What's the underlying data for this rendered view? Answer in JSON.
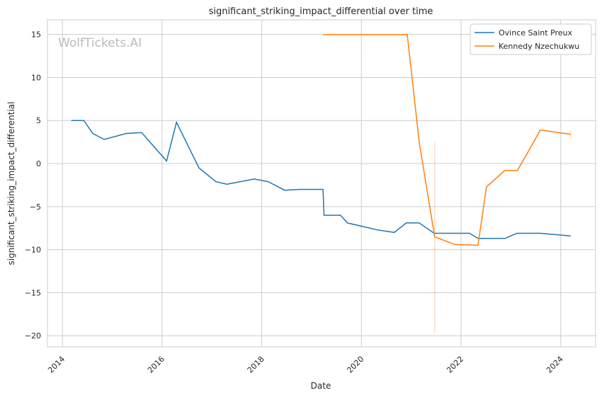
{
  "chart_data": {
    "type": "line",
    "title": "significant_striking_impact_differential over time",
    "xlabel": "Date",
    "ylabel": "significant_striking_impact_differential",
    "watermark": "WolfTickets.AI",
    "xlim": [
      2013.7,
      2024.7
    ],
    "ylim": [
      -21.3,
      16.7
    ],
    "xticks": [
      2014,
      2016,
      2018,
      2020,
      2022,
      2024
    ],
    "yticks": [
      -20,
      -15,
      -10,
      -5,
      0,
      5,
      10,
      15
    ],
    "grid": true,
    "legend_position": "top-right",
    "series": [
      {
        "name": "Ovince Saint Preux",
        "color": "#1f77b4",
        "x": [
          2014.18,
          2014.43,
          2014.61,
          2014.84,
          2015.28,
          2015.59,
          2016.09,
          2016.29,
          2016.74,
          2017.08,
          2017.3,
          2017.85,
          2018.13,
          2018.46,
          2018.76,
          2019.23,
          2019.25,
          2019.58,
          2019.72,
          2020.32,
          2020.66,
          2020.9,
          2021.16,
          2021.46,
          2022.17,
          2022.34,
          2022.88,
          2023.12,
          2023.59,
          2024.2
        ],
        "y": [
          5.0,
          5.0,
          3.5,
          2.8,
          3.5,
          3.6,
          0.3,
          4.8,
          -0.5,
          -2.1,
          -2.4,
          -1.8,
          -2.1,
          -3.1,
          -3.0,
          -3.0,
          -6.0,
          -6.0,
          -6.9,
          -7.7,
          -8.0,
          -6.9,
          -6.9,
          -8.1,
          -8.1,
          -8.7,
          -8.7,
          -8.1,
          -8.1,
          -8.4
        ]
      },
      {
        "name": "Kennedy Nzechukwu",
        "color": "#ff7f0e",
        "x": [
          2019.23,
          2020.92,
          2021.16,
          2021.47,
          2021.87,
          2022.34,
          2022.51,
          2022.88,
          2023.13,
          2023.33,
          2023.59,
          2024.2
        ],
        "y": [
          15.0,
          15.0,
          2.5,
          -8.5,
          -9.4,
          -9.5,
          -2.7,
          -0.8,
          -0.8,
          1.2,
          3.9,
          3.4
        ],
        "ci": [
          {
            "x": 2021.47,
            "low": -19.7,
            "high": 2.5
          },
          {
            "x": 2024.2,
            "low": 2.9,
            "high": 3.9
          }
        ]
      }
    ]
  }
}
